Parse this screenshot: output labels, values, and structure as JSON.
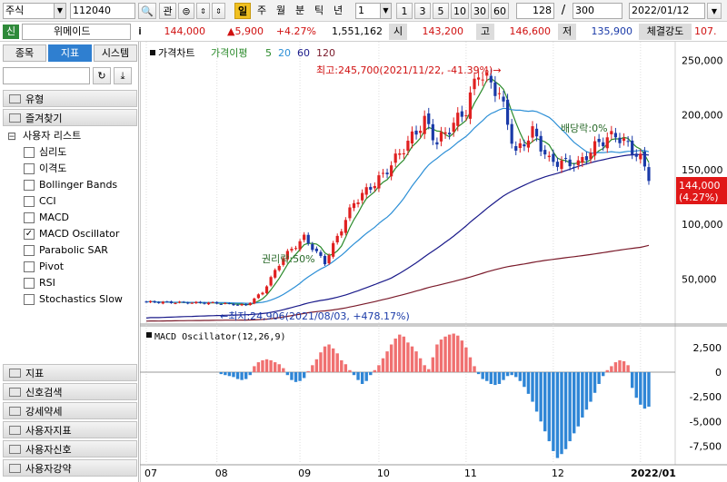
{
  "toolbar": {
    "market": "주식",
    "code": "112040",
    "btn_search": "🔍",
    "btn_kwan": "관",
    "period_active": "일",
    "periods": [
      "주",
      "월",
      "분",
      "틱",
      "년"
    ],
    "interval": "1",
    "intervals": [
      "1",
      "3",
      "5",
      "10",
      "30",
      "60"
    ],
    "count": "128",
    "slash": "/",
    "total": "300",
    "date": "2022/01/12"
  },
  "infobar": {
    "badge": "신",
    "name": "위메이드",
    "info_icon": "i",
    "price": "144,000",
    "change": "▲5,900",
    "change_pct": "+4.27%",
    "volume": "1,551,162",
    "open_label": "시",
    "open": "143,200",
    "high_label": "고",
    "high": "146,600",
    "low_label": "저",
    "low": "135,900",
    "strength_label": "체결강도",
    "strength": "107."
  },
  "sidebar": {
    "tabs": [
      "종목",
      "지표",
      "시스템"
    ],
    "groups_top": [
      "유형",
      "즐겨찾기"
    ],
    "user_list": "사용자 리스트",
    "items": [
      {
        "label": "심리도",
        "checked": false
      },
      {
        "label": "이격도",
        "checked": false
      },
      {
        "label": "Bollinger Bands",
        "checked": false
      },
      {
        "label": "CCI",
        "checked": false
      },
      {
        "label": "MACD",
        "checked": false
      },
      {
        "label": "MACD Oscillator",
        "checked": true
      },
      {
        "label": "Parabolic SAR",
        "checked": false
      },
      {
        "label": "Pivot",
        "checked": false
      },
      {
        "label": "RSI",
        "checked": false
      },
      {
        "label": "Stochastics Slow",
        "checked": false
      }
    ],
    "groups_bottom": [
      "지표",
      "신호검색",
      "강세약세",
      "사용자지표",
      "사용자신호",
      "사용자강약"
    ]
  },
  "chart": {
    "legend_label": "가격차트",
    "legend_ma_label": "가격이평",
    "ma_periods": [
      "5",
      "20",
      "60",
      "120"
    ],
    "ma_colors": [
      "#2a8a2a",
      "#2c8fd6",
      "#1a1a8a",
      "#7a1a2a"
    ],
    "up_color": "#e02020",
    "down_color": "#1a3aa8",
    "high_annotation": "최고:245,700(2021/11/22, -41.39%)→",
    "low_annotation": "←최저:24,906(2021/08/03, +478.17%)",
    "dividend_annotation": "배당락:0%",
    "rights_annotation": "권리락:50%",
    "price_ticks": [
      "250,000",
      "200,000",
      "150,000",
      "100,000",
      "50,000"
    ],
    "price_tick_values": [
      250000,
      200000,
      150000,
      100000,
      50000
    ],
    "price_range": [
      13000,
      262000
    ],
    "current_price": "144,000",
    "current_pct": "(4.27%)",
    "osc_title": "MACD Oscillator(12,26,9)",
    "osc_ticks": [
      "2,500",
      "0",
      "-2,500",
      "-5,000",
      "-7,500"
    ],
    "osc_tick_values": [
      2500,
      0,
      -2500,
      -5000,
      -7500
    ],
    "osc_range": [
      -9200,
      4500
    ],
    "x_labels": [
      "07",
      "08",
      "09",
      "10",
      "11",
      "12",
      "2022/01"
    ],
    "x_label_index": [
      0,
      17,
      37,
      56,
      77,
      98,
      119
    ]
  },
  "chart_data": {
    "type": "candlestick",
    "title": "가격차트",
    "osc_values": [
      0,
      0,
      0,
      0,
      0,
      0,
      0,
      0,
      0,
      0,
      0,
      0,
      0,
      0,
      0,
      0,
      0,
      0,
      -200,
      -300,
      -400,
      -500,
      -700,
      -800,
      -700,
      -300,
      600,
      1000,
      1200,
      1300,
      1200,
      1000,
      800,
      400,
      -300,
      -800,
      -1000,
      -900,
      -600,
      100,
      700,
      1300,
      2000,
      2600,
      2800,
      2400,
      1900,
      1200,
      800,
      200,
      -300,
      -800,
      -1200,
      -900,
      -300,
      200,
      700,
      1400,
      2100,
      2800,
      3400,
      3800,
      3600,
      3000,
      2600,
      2100,
      1400,
      700,
      300,
      1500,
      2800,
      3300,
      3600,
      3800,
      3900,
      3700,
      3200,
      2500,
      1500,
      600,
      -200,
      -700,
      -900,
      -1200,
      -1300,
      -1200,
      -800,
      -400,
      -300,
      -500,
      -900,
      -1500,
      -2200,
      -3000,
      -4000,
      -5000,
      -6000,
      -7000,
      -8000,
      -8700,
      -8300,
      -7800,
      -7000,
      -6200,
      -5500,
      -4600,
      -3800,
      -3000,
      -2100,
      -1200,
      -400,
      200,
      600,
      1000,
      1200,
      1100,
      700,
      -1600,
      -2600,
      -3300,
      -3700,
      -3500
    ]
  }
}
